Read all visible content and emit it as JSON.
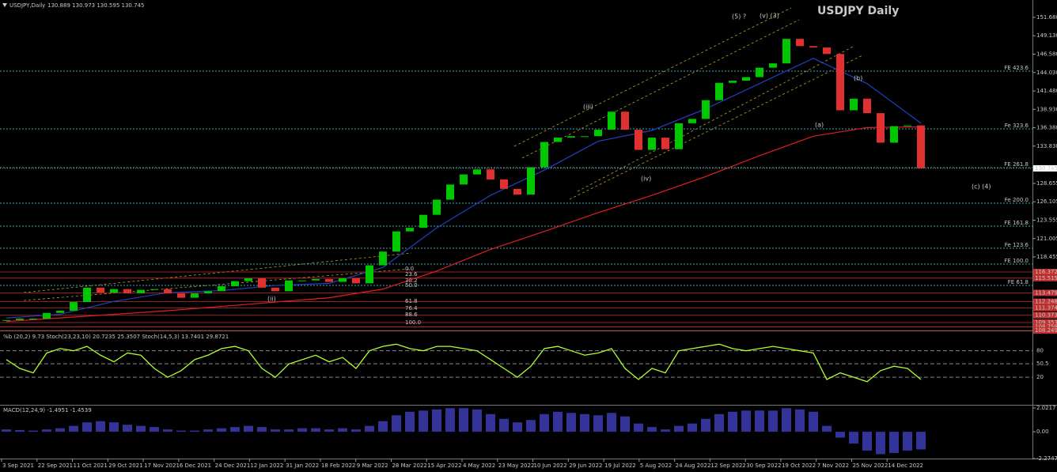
{
  "header": {
    "symbol": "USDJPY,Daily",
    "ohlc": "130.889 130.973 130.595 130.745"
  },
  "chart_data": {
    "type": "candlestick",
    "title": "USDJPY Daily",
    "closes": [
      109.7,
      109.9,
      109.9,
      110.7,
      111.0,
      112.2,
      114.2,
      113.5,
      114.0,
      113.4,
      113.9,
      114.0,
      113.4,
      112.8,
      113.4,
      113.7,
      114.4,
      115.1,
      115.5,
      114.2,
      113.7,
      115.2,
      115.2,
      115.4,
      115.0,
      115.5,
      114.8,
      117.3,
      119.2,
      122.0,
      122.5,
      124.3,
      126.4,
      128.5,
      129.9,
      130.6,
      129.2,
      127.9,
      127.1,
      130.9,
      134.4,
      135.0,
      135.2,
      135.2,
      136.1,
      138.6,
      136.1,
      133.3,
      135.0,
      133.4,
      137.0,
      137.6,
      140.2,
      142.6,
      142.9,
      143.4,
      144.7,
      145.3,
      148.7,
      147.7,
      147.5,
      146.6,
      138.8,
      140.4,
      138.4,
      134.3,
      136.6,
      136.7,
      130.745
    ],
    "up_color": "#00c800",
    "down_color": "#e03030",
    "ma_red": {
      "color": "#e02020",
      "values": [
        109.5,
        110.0,
        110.5,
        111.0,
        111.6,
        112.2,
        112.8,
        114.0,
        116.5,
        119.5,
        122.0,
        124.6,
        127.0,
        129.6,
        132.5,
        135.2,
        136.4,
        136.5
      ]
    },
    "ma_blue": {
      "color": "#2040c0",
      "values": [
        110.0,
        110.5,
        112.3,
        113.5,
        113.8,
        114.5,
        114.8,
        117.0,
        122.5,
        127.0,
        130.5,
        134.5,
        136.0,
        139.0,
        142.5,
        146.0,
        142.5,
        137.0
      ]
    },
    "ylim": [
      108.26,
      154.09
    ],
    "yticks": [
      {
        "value": 151.68,
        "label": "151.680"
      },
      {
        "value": 149.13,
        "label": "149.130"
      },
      {
        "value": 146.58,
        "label": "146.580"
      },
      {
        "value": 144.03,
        "label": "144.030"
      },
      {
        "value": 141.48,
        "label": "141.480"
      },
      {
        "value": 138.93,
        "label": "138.930"
      },
      {
        "value": 136.38,
        "label": "136.380"
      },
      {
        "value": 133.83,
        "label": "133.830"
      },
      128.655,
      126.105,
      123.555,
      121.005,
      118.455
    ],
    "current_price": 130.745,
    "fib_levels": [
      {
        "label": "FE 423.6",
        "value": 144.22
      },
      {
        "label": "Fe 323.6",
        "value": 136.22
      },
      {
        "label": "FE 261.8",
        "value": 130.85
      },
      {
        "label": "Fe 200.0",
        "value": 125.91
      },
      {
        "label": "FE 161.8",
        "value": 122.73
      },
      {
        "label": "Fe 123.6",
        "value": 119.66
      },
      {
        "label": "FE 100.0",
        "value": 117.47
      },
      {
        "label": "FE 61.8",
        "value": 114.51
      }
    ],
    "support_levels": [
      116.372,
      115.515,
      113.479,
      112.248,
      111.374,
      110.373,
      109.353,
      108.758,
      108.249
    ],
    "retracement_labels": [
      "0.0",
      "23.6",
      "38.2",
      "50.0",
      "61.8",
      "76.4",
      "88.6",
      "100.0"
    ],
    "wave_labels": [
      "(5) ?",
      "(v) (3)",
      "(iii)",
      "(iv)",
      "(a)",
      "(b)",
      "(c) (4)",
      "(ii)"
    ],
    "dates": [
      "3 Sep 2021",
      "22 Sep 2021",
      "11 Oct 2021",
      "29 Oct 2021",
      "17 Nov 2021",
      "6 Dec 2021",
      "24 Dec 2021",
      "12 Jan 2022",
      "31 Jan 2022",
      "18 Feb 2022",
      "9 Mar 2022",
      "28 Mar 2022",
      "15 Apr 2022",
      "4 May 2022",
      "23 May 2022",
      "10 Jun 2022",
      "29 Jun 2022",
      "19 Jul 2022",
      "5 Aug 2022",
      "24 Aug 2022",
      "12 Sep 2022",
      "30 Sep 2022",
      "19 Oct 2022",
      "7 Nov 2022",
      "25 Nov 2022",
      "14 Dec 2022"
    ]
  },
  "stoch_panel": {
    "label": "%b (20,2) 9.73  Stoch(23,23,10) 20.7235 25.3507  Stoch(14,5,3) 13.7401 29.8721",
    "color": "#adff2f",
    "values": [
      60,
      40,
      30,
      75,
      85,
      80,
      90,
      70,
      55,
      75,
      70,
      40,
      20,
      35,
      60,
      70,
      85,
      90,
      80,
      40,
      20,
      50,
      60,
      70,
      55,
      65,
      40,
      80,
      90,
      95,
      85,
      80,
      90,
      90,
      85,
      80,
      60,
      40,
      20,
      45,
      85,
      90,
      80,
      70,
      75,
      85,
      40,
      15,
      40,
      30,
      80,
      85,
      90,
      95,
      85,
      80,
      85,
      90,
      85,
      80,
      75,
      15,
      30,
      20,
      10,
      35,
      45,
      40,
      15
    ],
    "ylim": [
      -38.8,
      118.85
    ],
    "yticks": [
      80,
      50.5,
      20
    ]
  },
  "macd_panel": {
    "label": "MACD(12,24,9) -1.4951 -1.4539",
    "color": "#4040c0",
    "values": [
      0.2,
      0.15,
      0.1,
      0.2,
      0.3,
      0.5,
      0.8,
      0.9,
      0.8,
      0.6,
      0.5,
      0.4,
      0.2,
      0.1,
      0.1,
      0.2,
      0.3,
      0.4,
      0.5,
      0.4,
      0.2,
      0.2,
      0.3,
      0.3,
      0.2,
      0.3,
      0.2,
      0.5,
      0.9,
      1.4,
      1.7,
      1.8,
      1.9,
      2.0,
      2.0,
      1.9,
      1.5,
      1.1,
      0.8,
      1.0,
      1.5,
      1.7,
      1.6,
      1.5,
      1.4,
      1.6,
      1.3,
      0.7,
      0.4,
      0.2,
      0.5,
      0.7,
      1.1,
      1.5,
      1.7,
      1.8,
      1.8,
      1.8,
      2.0,
      1.9,
      1.7,
      0.5,
      -0.5,
      -1.0,
      -1.6,
      -1.9,
      -1.8,
      -1.6,
      -1.5
    ],
    "ylim": [
      -2.2747,
      2.0217
    ],
    "yticks": [
      2.0217,
      {
        "value": 0,
        "label": "0.00"
      },
      -2.2747
    ]
  }
}
